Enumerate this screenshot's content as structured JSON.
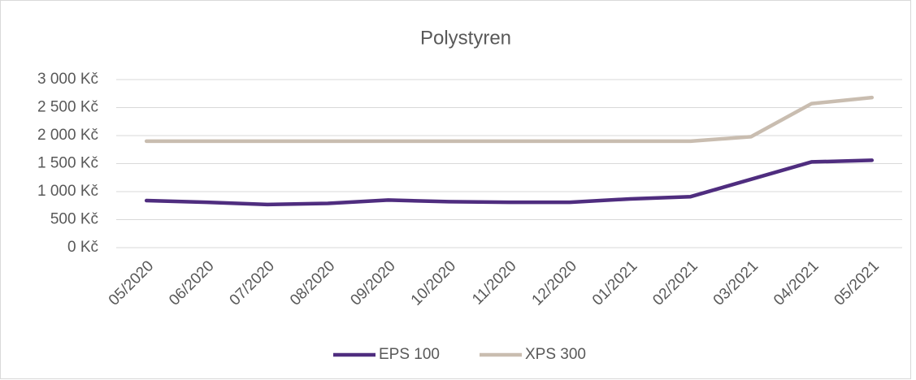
{
  "chart_data": {
    "type": "line",
    "title": "Polystyren",
    "categories": [
      "05/2020",
      "06/2020",
      "07/2020",
      "08/2020",
      "09/2020",
      "10/2020",
      "11/2020",
      "12/2020",
      "01/2021",
      "02/2021",
      "03/2021",
      "04/2021",
      "05/2021"
    ],
    "series": [
      {
        "name": "EPS 100",
        "color": "#4f2d7f",
        "values": [
          840,
          810,
          770,
          790,
          850,
          820,
          810,
          810,
          870,
          910,
          1220,
          1530,
          1560
        ]
      },
      {
        "name": "XPS 300",
        "color": "#c9bdb0",
        "values": [
          1900,
          1900,
          1900,
          1900,
          1900,
          1900,
          1900,
          1900,
          1900,
          1900,
          1980,
          2570,
          2680
        ]
      }
    ],
    "ylim": [
      0,
      3000
    ],
    "yticks": [
      {
        "value": 0,
        "label": "0 Kč"
      },
      {
        "value": 500,
        "label": "500 Kč"
      },
      {
        "value": 1000,
        "label": "1 000 Kč"
      },
      {
        "value": 1500,
        "label": "1 500 Kč"
      },
      {
        "value": 2000,
        "label": "2 000 Kč"
      },
      {
        "value": 2500,
        "label": "2 500 Kč"
      },
      {
        "value": 3000,
        "label": "3 000 Kč"
      }
    ],
    "grid": true,
    "legend": "bottom"
  }
}
